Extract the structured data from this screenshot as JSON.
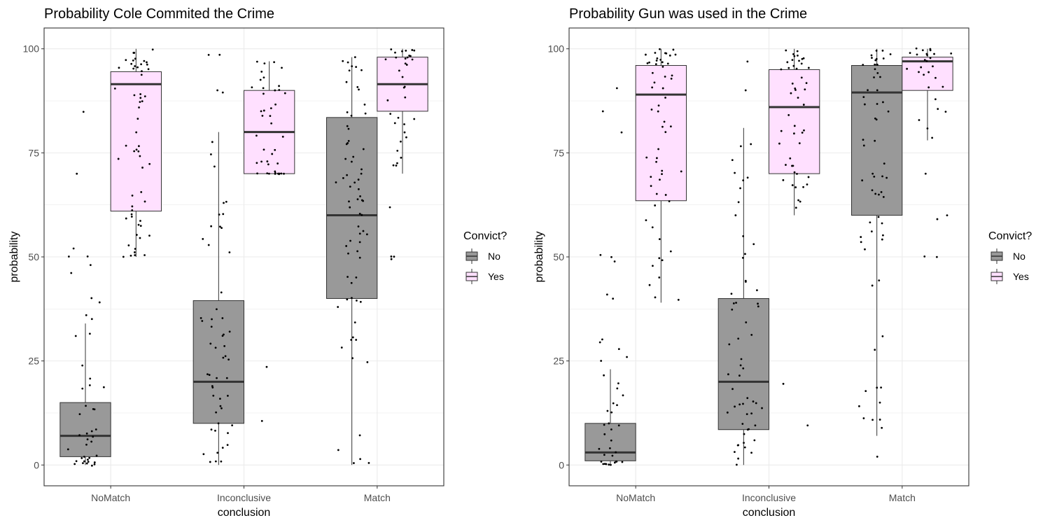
{
  "colors": {
    "No": "#999999",
    "Yes": "#ffe0ff",
    "grid": "#ebebeb",
    "panel_border": "#333333",
    "median": "#333333",
    "point": "#000000"
  },
  "legend": {
    "title": "Convict?",
    "items": [
      {
        "key": "No",
        "label": "No"
      },
      {
        "key": "Yes",
        "label": "Yes"
      }
    ]
  },
  "chart_data": [
    {
      "type": "box",
      "title": "Probability Cole Commited the Crime",
      "xlabel": "conclusion",
      "ylabel": "probability",
      "ylim": [
        -5,
        105
      ],
      "yticks": [
        0,
        25,
        50,
        75,
        100
      ],
      "categories": [
        "NoMatch",
        "Inconclusive",
        "Match"
      ],
      "groups": [
        {
          "category": "NoMatch",
          "convict": "No",
          "q1": 2,
          "median": 7,
          "q3": 15,
          "whisker_low": 0,
          "whisker_high": 34,
          "outliers": [
            85,
            70,
            52,
            50,
            50,
            48,
            46,
            40,
            39,
            36,
            35
          ]
        },
        {
          "category": "NoMatch",
          "convict": "Yes",
          "q1": 61,
          "median": 91.5,
          "q3": 94.5,
          "whisker_low": 50,
          "whisker_high": 100,
          "outliers": []
        },
        {
          "category": "Inconclusive",
          "convict": "No",
          "q1": 10,
          "median": 20,
          "q3": 39.5,
          "whisker_low": 0,
          "whisker_high": 80,
          "outliers": [
            98.5,
            98.5,
            90,
            89.5
          ]
        },
        {
          "category": "Inconclusive",
          "convict": "Yes",
          "q1": 70,
          "median": 80,
          "q3": 90,
          "whisker_low": 70,
          "whisker_high": 97,
          "outliers": [
            23.5,
            10.5
          ]
        },
        {
          "category": "Match",
          "convict": "No",
          "q1": 40,
          "median": 60,
          "q3": 83.5,
          "whisker_low": 0,
          "whisker_high": 98,
          "outliers": []
        },
        {
          "category": "Match",
          "convict": "Yes",
          "q1": 85,
          "median": 91.5,
          "q3": 98,
          "whisker_low": 70,
          "whisker_high": 100,
          "outliers": [
            62,
            50,
            50,
            49.5
          ]
        }
      ]
    },
    {
      "type": "box",
      "title": "Probability Gun was used in the Crime",
      "xlabel": "conclusion",
      "ylabel": "probability",
      "ylim": [
        -5,
        105
      ],
      "yticks": [
        0,
        25,
        50,
        75,
        100
      ],
      "categories": [
        "NoMatch",
        "Inconclusive",
        "Match"
      ],
      "groups": [
        {
          "category": "NoMatch",
          "convict": "No",
          "q1": 1,
          "median": 3,
          "q3": 10,
          "whisker_low": 0,
          "whisker_high": 23,
          "outliers": [
            90.5,
            85,
            80,
            50.5,
            50,
            49,
            41,
            40,
            30,
            29.5,
            28,
            26,
            25
          ]
        },
        {
          "category": "NoMatch",
          "convict": "Yes",
          "q1": 63.5,
          "median": 89,
          "q3": 96,
          "whisker_low": 39,
          "whisker_high": 100,
          "outliers": []
        },
        {
          "category": "Inconclusive",
          "convict": "No",
          "q1": 8.5,
          "median": 20,
          "q3": 40,
          "whisker_low": 0,
          "whisker_high": 81,
          "outliers": [
            97,
            90
          ]
        },
        {
          "category": "Inconclusive",
          "convict": "Yes",
          "q1": 70,
          "median": 86,
          "q3": 95,
          "whisker_low": 60,
          "whisker_high": 100,
          "outliers": [
            19.5,
            9.5
          ]
        },
        {
          "category": "Match",
          "convict": "No",
          "q1": 60,
          "median": 89.5,
          "q3": 96,
          "whisker_low": 7,
          "whisker_high": 100,
          "outliers": [
            2
          ]
        },
        {
          "category": "Match",
          "convict": "Yes",
          "q1": 90,
          "median": 97,
          "q3": 98,
          "whisker_low": 78,
          "whisker_high": 100,
          "outliers": [
            70,
            60,
            59,
            50,
            50
          ]
        }
      ]
    }
  ]
}
